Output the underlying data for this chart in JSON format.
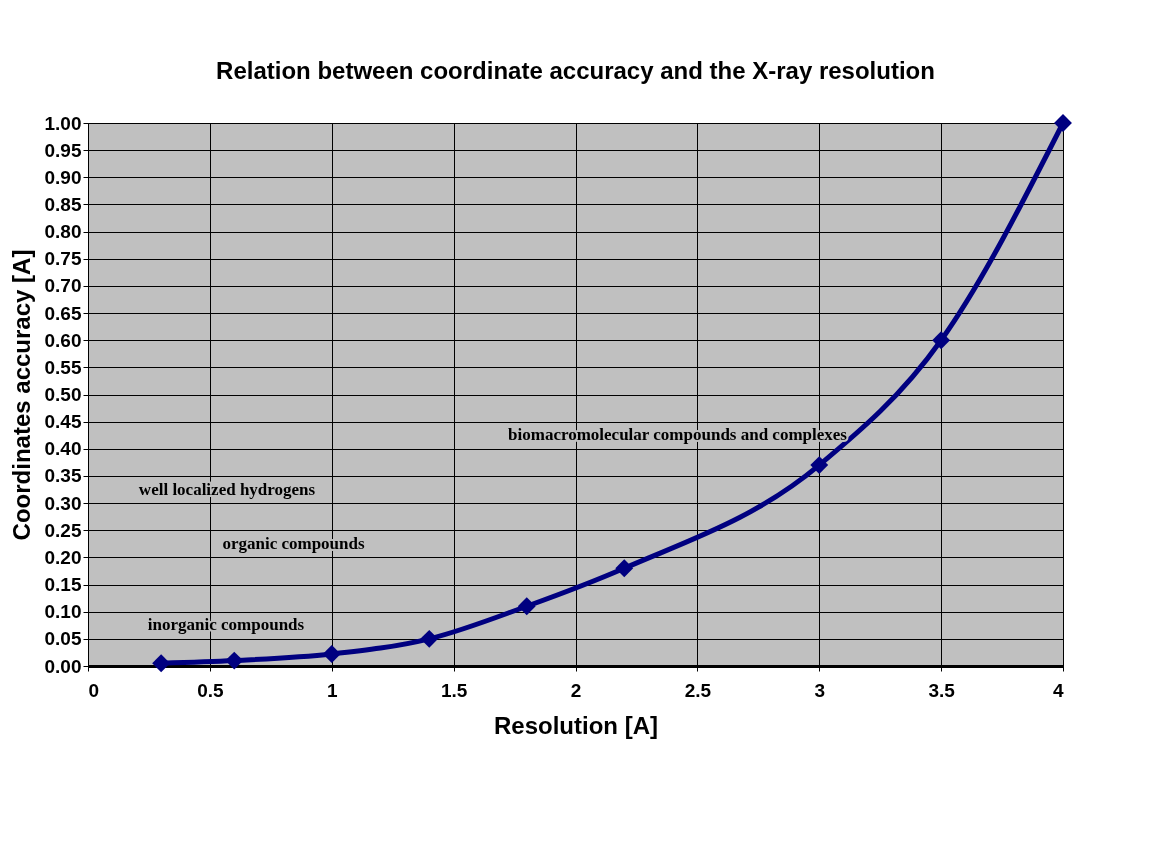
{
  "chart_data": {
    "type": "line",
    "title": "Relation between coordinate accuracy and the X-ray resolution",
    "xlabel": "Resolution [A]",
    "ylabel": "Coordinates accuracy [A]",
    "x": [
      0.3,
      0.6,
      1.0,
      1.4,
      1.8,
      2.2,
      3.0,
      3.5,
      4.0
    ],
    "series": [
      {
        "color": "#000080",
        "values": [
          0.005,
          0.01,
          0.022,
          0.05,
          0.11,
          0.18,
          0.37,
          0.6,
          1.0
        ]
      }
    ],
    "xlim": [
      0,
      4
    ],
    "xticks": [
      0,
      0.5,
      1,
      1.5,
      2,
      2.5,
      3,
      3.5,
      4
    ],
    "ylim": [
      0,
      1
    ],
    "yticks": [
      {
        "value": 0,
        "label": "0.00"
      },
      {
        "value": 0.05,
        "label": "0.05"
      },
      {
        "value": 0.1,
        "label": "0.10"
      },
      {
        "value": 0.15,
        "label": "0.15"
      },
      {
        "value": 0.2,
        "label": "0.20"
      },
      {
        "value": 0.25,
        "label": "0.25"
      },
      {
        "value": 0.3,
        "label": "0.30"
      },
      {
        "value": 0.35,
        "label": "0.35"
      },
      {
        "value": 0.4,
        "label": "0.40"
      },
      {
        "value": 0.45,
        "label": "0.45"
      },
      {
        "value": 0.5,
        "label": "0.50"
      },
      {
        "value": 0.55,
        "label": "0.55"
      },
      {
        "value": 0.6,
        "label": "0.60"
      },
      {
        "value": 0.65,
        "label": "0.65"
      },
      {
        "value": 0.7,
        "label": "0.70"
      },
      {
        "value": 0.75,
        "label": "0.75"
      },
      {
        "value": 0.8,
        "label": "0.80"
      },
      {
        "value": 0.85,
        "label": "0.85"
      },
      {
        "value": 0.9,
        "label": "0.90"
      },
      {
        "value": 0.95,
        "label": "0.95"
      },
      {
        "value": 1,
        "label": "1.00"
      }
    ],
    "annotations": [
      "biomacromolecular compounds and complexes",
      "well localized hydrogens",
      "organic compounds",
      "inorganic compounds"
    ],
    "grid": true,
    "marker": "diamond",
    "line_style": "solid"
  }
}
